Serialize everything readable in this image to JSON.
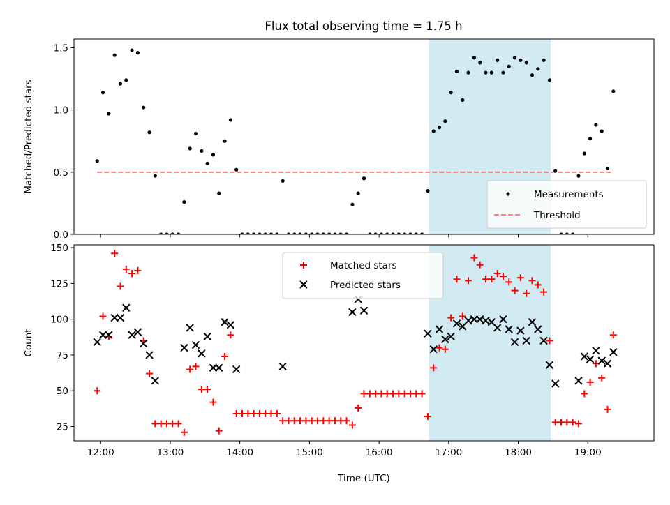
{
  "title": "Flux total observing time = 1.75 h",
  "chart_data": [
    {
      "type": "scatter",
      "ylabel": "Matched/Predicted stars",
      "xlabel": "",
      "xlim": [
        "11:37",
        "19:57"
      ],
      "ylim": [
        0,
        1.57
      ],
      "yticks": [
        0,
        0.5,
        1.0,
        1.5
      ],
      "ytick_labels": [
        "0.0",
        "0.5",
        "1.0",
        "1.5"
      ],
      "highlight_span": [
        "16:43",
        "18:28"
      ],
      "legend": "bottom-right",
      "series": [
        {
          "name": "Measurements",
          "points": [
            [
              "11:57",
              0.59
            ],
            [
              "12:02",
              1.14
            ],
            [
              "12:07",
              0.97
            ],
            [
              "12:12",
              1.44
            ],
            [
              "12:17",
              1.21
            ],
            [
              "12:22",
              1.24
            ],
            [
              "12:27",
              1.48
            ],
            [
              "12:32",
              1.46
            ],
            [
              "12:37",
              1.02
            ],
            [
              "12:42",
              0.82
            ],
            [
              "12:47",
              0.47
            ],
            [
              "12:52",
              0.0
            ],
            [
              "12:57",
              0.0
            ],
            [
              "13:02",
              0.0
            ],
            [
              "13:07",
              0.0
            ],
            [
              "13:12",
              0.26
            ],
            [
              "13:17",
              0.69
            ],
            [
              "13:22",
              0.81
            ],
            [
              "13:27",
              0.67
            ],
            [
              "13:32",
              0.57
            ],
            [
              "13:37",
              0.64
            ],
            [
              "13:42",
              0.33
            ],
            [
              "13:47",
              0.75
            ],
            [
              "13:52",
              0.92
            ],
            [
              "13:57",
              0.52
            ],
            [
              "14:02",
              0.0
            ],
            [
              "14:07",
              0.0
            ],
            [
              "14:12",
              0.0
            ],
            [
              "14:17",
              0.0
            ],
            [
              "14:22",
              0.0
            ],
            [
              "14:27",
              0.0
            ],
            [
              "14:32",
              0.0
            ],
            [
              "14:37",
              0.43
            ],
            [
              "14:42",
              0.0
            ],
            [
              "14:47",
              0.0
            ],
            [
              "14:52",
              0.0
            ],
            [
              "14:57",
              0.0
            ],
            [
              "15:02",
              0.0
            ],
            [
              "15:07",
              0.0
            ],
            [
              "15:12",
              0.0
            ],
            [
              "15:17",
              0.0
            ],
            [
              "15:22",
              0.0
            ],
            [
              "15:27",
              0.0
            ],
            [
              "15:32",
              0.0
            ],
            [
              "15:37",
              0.24
            ],
            [
              "15:42",
              0.33
            ],
            [
              "15:47",
              0.45
            ],
            [
              "15:52",
              0.0
            ],
            [
              "15:57",
              0.0
            ],
            [
              "16:02",
              0.0
            ],
            [
              "16:07",
              0.0
            ],
            [
              "16:12",
              0.0
            ],
            [
              "16:17",
              0.0
            ],
            [
              "16:22",
              0.0
            ],
            [
              "16:27",
              0.0
            ],
            [
              "16:32",
              0.0
            ],
            [
              "16:37",
              0.0
            ],
            [
              "16:42",
              0.35
            ],
            [
              "16:47",
              0.83
            ],
            [
              "16:52",
              0.86
            ],
            [
              "16:57",
              0.91
            ],
            [
              "17:02",
              1.14
            ],
            [
              "17:07",
              1.31
            ],
            [
              "17:12",
              1.08
            ],
            [
              "17:17",
              1.3
            ],
            [
              "17:22",
              1.42
            ],
            [
              "17:27",
              1.38
            ],
            [
              "17:32",
              1.3
            ],
            [
              "17:37",
              1.3
            ],
            [
              "17:42",
              1.4
            ],
            [
              "17:47",
              1.3
            ],
            [
              "17:52",
              1.35
            ],
            [
              "17:57",
              1.42
            ],
            [
              "18:02",
              1.4
            ],
            [
              "18:07",
              1.38
            ],
            [
              "18:12",
              1.28
            ],
            [
              "18:17",
              1.33
            ],
            [
              "18:22",
              1.4
            ],
            [
              "18:27",
              1.24
            ],
            [
              "18:32",
              0.51
            ],
            [
              "18:37",
              0.0
            ],
            [
              "18:42",
              0.0
            ],
            [
              "18:47",
              0.0
            ],
            [
              "18:52",
              0.47
            ],
            [
              "18:57",
              0.65
            ],
            [
              "19:02",
              0.77
            ],
            [
              "19:07",
              0.88
            ],
            [
              "19:12",
              0.83
            ],
            [
              "19:17",
              0.53
            ],
            [
              "19:22",
              1.15
            ]
          ]
        },
        {
          "name": "Threshold",
          "style": "dashed",
          "points": [
            [
              "11:57",
              0.5
            ],
            [
              "19:22",
              0.5
            ]
          ]
        }
      ]
    },
    {
      "type": "scatter",
      "xlabel": "Time (UTC)",
      "ylabel": "Count",
      "xlim": [
        "11:37",
        "19:57"
      ],
      "ylim": [
        15,
        152
      ],
      "xticks": [
        "12:00",
        "13:00",
        "14:00",
        "15:00",
        "16:00",
        "17:00",
        "18:00",
        "19:00"
      ],
      "yticks": [
        25,
        50,
        75,
        100,
        125,
        150
      ],
      "highlight_span": [
        "16:43",
        "18:28"
      ],
      "legend": "top-center",
      "series": [
        {
          "name": "Matched stars",
          "points": [
            [
              "11:57",
              50
            ],
            [
              "12:02",
              102
            ],
            [
              "12:07",
              88
            ],
            [
              "12:12",
              146
            ],
            [
              "12:17",
              123
            ],
            [
              "12:22",
              135
            ],
            [
              "12:27",
              132
            ],
            [
              "12:32",
              134
            ],
            [
              "12:37",
              85
            ],
            [
              "12:42",
              62
            ],
            [
              "12:47",
              27
            ],
            [
              "12:52",
              27
            ],
            [
              "12:57",
              27
            ],
            [
              "13:02",
              27
            ],
            [
              "13:07",
              27
            ],
            [
              "13:12",
              21
            ],
            [
              "13:17",
              65
            ],
            [
              "13:22",
              67
            ],
            [
              "13:27",
              51
            ],
            [
              "13:32",
              51
            ],
            [
              "13:37",
              42
            ],
            [
              "13:42",
              22
            ],
            [
              "13:47",
              74
            ],
            [
              "13:52",
              89
            ],
            [
              "13:57",
              34
            ],
            [
              "14:02",
              34
            ],
            [
              "14:07",
              34
            ],
            [
              "14:12",
              34
            ],
            [
              "14:17",
              34
            ],
            [
              "14:22",
              34
            ],
            [
              "14:27",
              34
            ],
            [
              "14:32",
              34
            ],
            [
              "14:37",
              29
            ],
            [
              "14:42",
              29
            ],
            [
              "14:47",
              29
            ],
            [
              "14:52",
              29
            ],
            [
              "14:57",
              29
            ],
            [
              "15:02",
              29
            ],
            [
              "15:07",
              29
            ],
            [
              "15:12",
              29
            ],
            [
              "15:17",
              29
            ],
            [
              "15:22",
              29
            ],
            [
              "15:27",
              29
            ],
            [
              "15:32",
              29
            ],
            [
              "15:37",
              26
            ],
            [
              "15:42",
              38
            ],
            [
              "15:47",
              48
            ],
            [
              "15:52",
              48
            ],
            [
              "15:57",
              48
            ],
            [
              "16:02",
              48
            ],
            [
              "16:07",
              48
            ],
            [
              "16:12",
              48
            ],
            [
              "16:17",
              48
            ],
            [
              "16:22",
              48
            ],
            [
              "16:27",
              48
            ],
            [
              "16:32",
              48
            ],
            [
              "16:37",
              48
            ],
            [
              "16:42",
              32
            ],
            [
              "16:47",
              66
            ],
            [
              "16:52",
              80
            ],
            [
              "16:57",
              79
            ],
            [
              "17:02",
              101
            ],
            [
              "17:07",
              128
            ],
            [
              "17:12",
              102
            ],
            [
              "17:17",
              127
            ],
            [
              "17:22",
              143
            ],
            [
              "17:27",
              138
            ],
            [
              "17:32",
              128
            ],
            [
              "17:37",
              128
            ],
            [
              "17:42",
              132
            ],
            [
              "17:47",
              130
            ],
            [
              "17:52",
              126
            ],
            [
              "17:57",
              120
            ],
            [
              "18:02",
              129
            ],
            [
              "18:07",
              118
            ],
            [
              "18:12",
              127
            ],
            [
              "18:17",
              124
            ],
            [
              "18:22",
              119
            ],
            [
              "18:27",
              85
            ],
            [
              "18:32",
              28
            ],
            [
              "18:37",
              28
            ],
            [
              "18:42",
              28
            ],
            [
              "18:47",
              28
            ],
            [
              "18:52",
              27
            ],
            [
              "18:57",
              48
            ],
            [
              "19:02",
              56
            ],
            [
              "19:07",
              69
            ],
            [
              "19:12",
              59
            ],
            [
              "19:17",
              37
            ],
            [
              "19:22",
              89
            ]
          ]
        },
        {
          "name": "Predicted stars",
          "points": [
            [
              "11:57",
              84
            ],
            [
              "12:02",
              89
            ],
            [
              "12:07",
              89
            ],
            [
              "12:12",
              101
            ],
            [
              "12:17",
              101
            ],
            [
              "12:22",
              108
            ],
            [
              "12:27",
              89
            ],
            [
              "12:32",
              91
            ],
            [
              "12:37",
              83
            ],
            [
              "12:42",
              75
            ],
            [
              "12:47",
              57
            ],
            [
              "13:12",
              80
            ],
            [
              "13:17",
              94
            ],
            [
              "13:22",
              82
            ],
            [
              "13:27",
              76
            ],
            [
              "13:32",
              88
            ],
            [
              "13:37",
              66
            ],
            [
              "13:42",
              66
            ],
            [
              "13:47",
              98
            ],
            [
              "13:52",
              96
            ],
            [
              "13:57",
              65
            ],
            [
              "14:37",
              67
            ],
            [
              "15:37",
              105
            ],
            [
              "15:42",
              114
            ],
            [
              "15:47",
              106
            ],
            [
              "16:42",
              90
            ],
            [
              "16:47",
              79
            ],
            [
              "16:52",
              93
            ],
            [
              "16:57",
              86
            ],
            [
              "17:02",
              88
            ],
            [
              "17:07",
              97
            ],
            [
              "17:12",
              95
            ],
            [
              "17:17",
              99
            ],
            [
              "17:22",
              100
            ],
            [
              "17:27",
              100
            ],
            [
              "17:32",
              99
            ],
            [
              "17:37",
              98
            ],
            [
              "17:42",
              94
            ],
            [
              "17:47",
              100
            ],
            [
              "17:52",
              93
            ],
            [
              "17:57",
              84
            ],
            [
              "18:02",
              92
            ],
            [
              "18:07",
              85
            ],
            [
              "18:12",
              98
            ],
            [
              "18:17",
              93
            ],
            [
              "18:22",
              85
            ],
            [
              "18:27",
              68
            ],
            [
              "18:32",
              55
            ],
            [
              "18:52",
              57
            ],
            [
              "18:57",
              74
            ],
            [
              "19:02",
              72
            ],
            [
              "19:07",
              78
            ],
            [
              "19:12",
              71
            ],
            [
              "19:17",
              69
            ],
            [
              "19:22",
              77
            ]
          ]
        }
      ]
    }
  ],
  "colors": {
    "measurements": "#000000",
    "threshold": "#ff7f7f",
    "matched": "#ff0000",
    "predicted": "#000000",
    "span": "#add8e6"
  }
}
